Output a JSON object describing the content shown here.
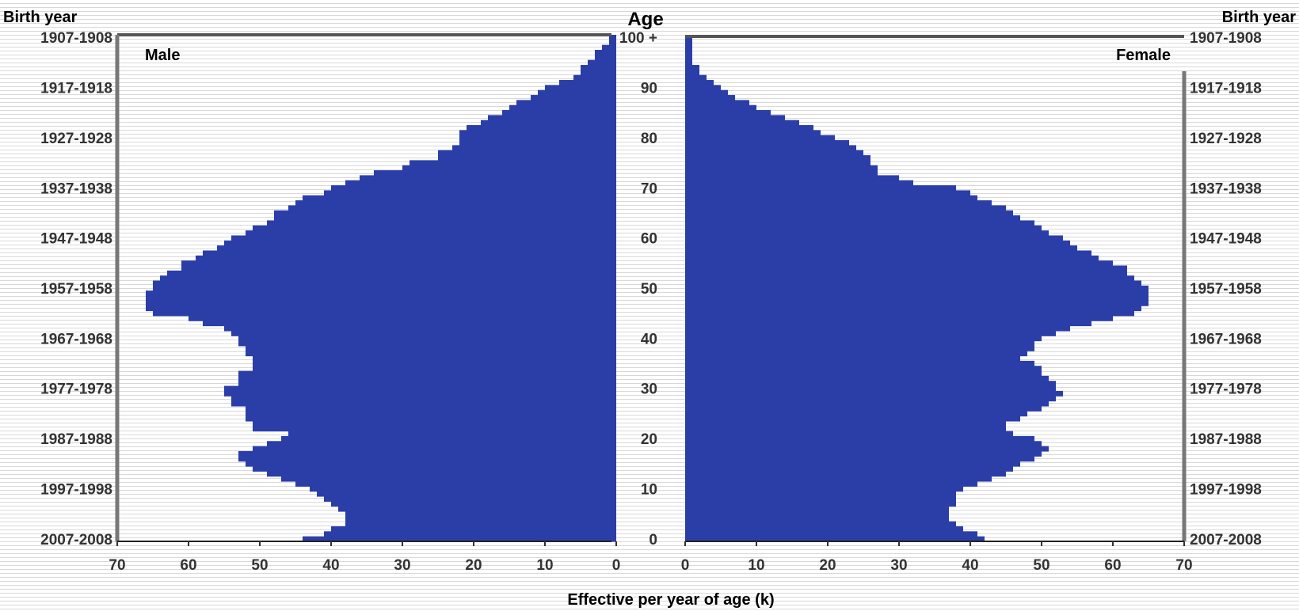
{
  "chart_data": {
    "type": "bar",
    "orientation": "horizontal",
    "title": "Age",
    "xlabel": "Effective per year of age (k)",
    "left_axis_title": "Birth year",
    "right_axis_title": "Birth year",
    "ages": [
      0,
      1,
      2,
      3,
      4,
      5,
      6,
      7,
      8,
      9,
      10,
      11,
      12,
      13,
      14,
      15,
      16,
      17,
      18,
      19,
      20,
      21,
      22,
      23,
      24,
      25,
      26,
      27,
      28,
      29,
      30,
      31,
      32,
      33,
      34,
      35,
      36,
      37,
      38,
      39,
      40,
      41,
      42,
      43,
      44,
      45,
      46,
      47,
      48,
      49,
      50,
      51,
      52,
      53,
      54,
      55,
      56,
      57,
      58,
      59,
      60,
      61,
      62,
      63,
      64,
      65,
      66,
      67,
      68,
      69,
      70,
      71,
      72,
      73,
      74,
      75,
      76,
      77,
      78,
      79,
      80,
      81,
      82,
      83,
      84,
      85,
      86,
      87,
      88,
      89,
      90,
      91,
      92,
      93,
      94,
      95,
      96,
      97,
      98,
      99,
      100
    ],
    "age_ticks": [
      "0",
      "10",
      "20",
      "30",
      "40",
      "50",
      "60",
      "70",
      "80",
      "90",
      "100 +"
    ],
    "birth_year_ticks": [
      "2007-2008",
      "1997-1998",
      "1987-1988",
      "1977-1978",
      "1967-1968",
      "1957-1958",
      "1947-1948",
      "1937-1938",
      "1927-1928",
      "1917-1918",
      "1907-1908"
    ],
    "x_ticks": [
      "70",
      "60",
      "50",
      "40",
      "30",
      "20",
      "10",
      "0"
    ],
    "x_ticks_right": [
      "0",
      "10",
      "20",
      "30",
      "40",
      "50",
      "60",
      "70"
    ],
    "xlim": [
      0,
      70
    ],
    "series": [
      {
        "name": "Male",
        "color": "#2b3ea8",
        "values": [
          44,
          41,
          40,
          38,
          38,
          38,
          39,
          40,
          41,
          42,
          43,
          45,
          47,
          49,
          51,
          52,
          53,
          53,
          51,
          49,
          47,
          46,
          51,
          51,
          52,
          52,
          52,
          54,
          54,
          55,
          55,
          53,
          53,
          53,
          51,
          51,
          51,
          52,
          52,
          53,
          53,
          54,
          55,
          58,
          60,
          65,
          66,
          66,
          66,
          66,
          65,
          65,
          64,
          63,
          61,
          61,
          59,
          58,
          56,
          55,
          54,
          52,
          51,
          49,
          48,
          48,
          46,
          45,
          44,
          41,
          40,
          38,
          36,
          34,
          30,
          29,
          25,
          25,
          23,
          22,
          22,
          22,
          21,
          19,
          18,
          16,
          15,
          14,
          12,
          11,
          10,
          8,
          6,
          5,
          5,
          4,
          3,
          3,
          2,
          1,
          1
        ]
      },
      {
        "name": "Female",
        "color": "#2b3ea8",
        "values": [
          42,
          41,
          39,
          38,
          37,
          37,
          37,
          38,
          38,
          38,
          39,
          41,
          43,
          45,
          46,
          47,
          49,
          50,
          51,
          50,
          49,
          46,
          45,
          45,
          47,
          48,
          50,
          51,
          52,
          53,
          52,
          52,
          51,
          50,
          50,
          49,
          47,
          48,
          49,
          49,
          50,
          52,
          54,
          57,
          60,
          63,
          64,
          65,
          65,
          65,
          65,
          64,
          63,
          62,
          62,
          60,
          58,
          57,
          55,
          54,
          53,
          51,
          50,
          49,
          47,
          46,
          45,
          43,
          41,
          40,
          38,
          32,
          30,
          27,
          27,
          26,
          26,
          25,
          24,
          23,
          21,
          19,
          18,
          16,
          14,
          12,
          10,
          9,
          7,
          6,
          5,
          4,
          3,
          2,
          2,
          1,
          1,
          1,
          1,
          1,
          1
        ]
      }
    ],
    "grid": false,
    "background": "horizontal-stripes"
  }
}
